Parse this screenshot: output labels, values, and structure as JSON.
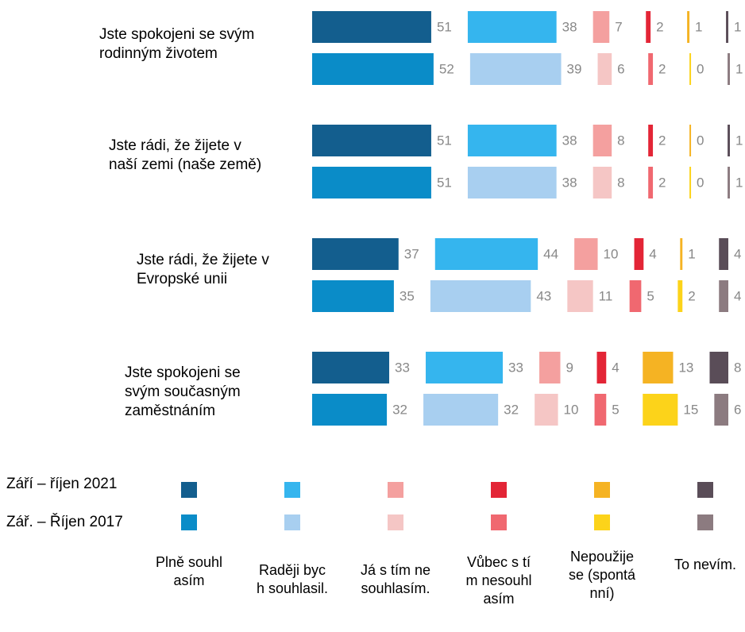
{
  "chart_data": {
    "type": "bar",
    "categories": [
      "Jste spokojeni se svým rodinným životem",
      "Jste rádi, že žijete v naší zemi (naše země)",
      "Jste rádi, že žijete v Evropské unii",
      "Jste spokojeni se svým současným zaměstnáním"
    ],
    "periods": [
      "Září – říjen 2021",
      "Zář. – Říjen 2017"
    ],
    "series": [
      {
        "name": "Plně souhlasím",
        "colors": [
          "#135e8e",
          "#0a8cc8"
        ],
        "values": [
          [
            51,
            52
          ],
          [
            51,
            51
          ],
          [
            37,
            35
          ],
          [
            33,
            32
          ]
        ]
      },
      {
        "name": "Raději bych souhlasil.",
        "colors": [
          "#35b5ee",
          "#a8cff0"
        ],
        "values": [
          [
            38,
            39
          ],
          [
            38,
            38
          ],
          [
            44,
            43
          ],
          [
            33,
            32
          ]
        ]
      },
      {
        "name": "Já s tím nesouhlasím.",
        "colors": [
          "#f4a09f",
          "#f5c6c5"
        ],
        "values": [
          [
            7,
            6
          ],
          [
            8,
            8
          ],
          [
            10,
            11
          ],
          [
            9,
            10
          ]
        ]
      },
      {
        "name": "Vůbec s tím nesouhlasím",
        "colors": [
          "#e32536",
          "#f06870"
        ],
        "values": [
          [
            2,
            2
          ],
          [
            2,
            2
          ],
          [
            4,
            5
          ],
          [
            4,
            5
          ]
        ]
      },
      {
        "name": "Nepoužije se (spontánní)",
        "colors": [
          "#f5b323",
          "#fcd31a"
        ],
        "values": [
          [
            1,
            0
          ],
          [
            0,
            0
          ],
          [
            1,
            2
          ],
          [
            13,
            15
          ]
        ]
      },
      {
        "name": "To nevím.",
        "colors": [
          "#5a4d58",
          "#8c7b80"
        ],
        "values": [
          [
            1,
            1
          ],
          [
            1,
            1
          ],
          [
            4,
            4
          ],
          [
            8,
            6
          ]
        ]
      }
    ]
  }
}
